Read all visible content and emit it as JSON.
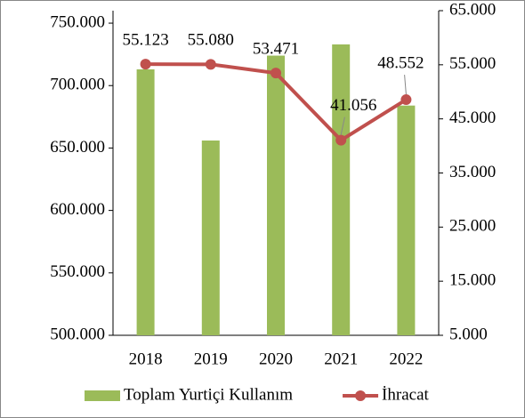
{
  "chart_data": {
    "type": "bar",
    "categories": [
      "2018",
      "2019",
      "2020",
      "2021",
      "2022"
    ],
    "series": [
      {
        "name": "Toplam Yurtiçi Kullanım",
        "color": "#9bbb59",
        "type": "bar",
        "values": [
          713000,
          656000,
          724000,
          733000,
          684000
        ]
      },
      {
        "name": "İhracat",
        "color": "#c0504d",
        "type": "line",
        "axis": "y2",
        "values": [
          55123,
          55080,
          53471,
          41056,
          48552
        ],
        "value_labels": [
          "55.123",
          "55.080",
          "53.471",
          "41.056",
          "48.552"
        ]
      }
    ],
    "ylim": [
      500000,
      760000
    ],
    "yticks": [
      {
        "value": 500000,
        "label": "500.000"
      },
      {
        "value": 550000,
        "label": "550.000"
      },
      {
        "value": 600000,
        "label": "600.000"
      },
      {
        "value": 650000,
        "label": "650.000"
      },
      {
        "value": 700000,
        "label": "700.000"
      },
      {
        "value": 750000,
        "label": "750.000"
      }
    ],
    "y2lim": [
      5000,
      65000
    ],
    "y2ticks": [
      {
        "value": 5000,
        "label": "5.000"
      },
      {
        "value": 15000,
        "label": "15.000"
      },
      {
        "value": 25000,
        "label": "25.000"
      },
      {
        "value": 35000,
        "label": "35.000"
      },
      {
        "value": 45000,
        "label": "45.000"
      },
      {
        "value": 55000,
        "label": "55.000"
      },
      {
        "value": 65000,
        "label": "65.000"
      }
    ],
    "legend": "bottom"
  }
}
